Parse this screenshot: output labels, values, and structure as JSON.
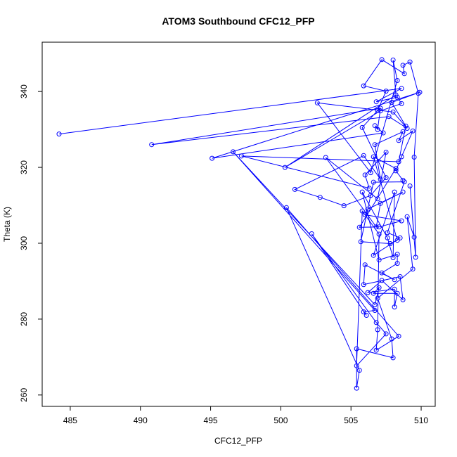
{
  "chart_data": {
    "type": "scatter",
    "mode": "lines+markers",
    "title": "ATOM3 Southbound CFC12_PFP",
    "xlabel": "CFC12_PFP",
    "ylabel": "Theta (K)",
    "xlim": [
      483,
      511
    ],
    "ylim": [
      257,
      353
    ],
    "xticks": [
      485,
      490,
      495,
      500,
      505,
      510
    ],
    "yticks": [
      260,
      280,
      300,
      320,
      340
    ],
    "color": "#0000ff",
    "grid": false,
    "legend": "none",
    "series": [
      {
        "points": [
          [
            484.2,
            328.8
          ],
          [
            508.6,
            340.8
          ],
          [
            506.8,
            337.3
          ],
          [
            508.3,
            338.5
          ],
          [
            508.6,
            336.8
          ],
          [
            507.1,
            334.9
          ],
          [
            500.3,
            320.0
          ],
          [
            508.2,
            339.1
          ],
          [
            508.0,
            348.3
          ],
          [
            508.3,
            342.9
          ],
          [
            506.4,
            318.6
          ],
          [
            502.6,
            337.0
          ],
          [
            508.0,
            334.6
          ],
          [
            509.0,
            330.3
          ],
          [
            507.7,
            333.4
          ],
          [
            490.8,
            326.0
          ],
          [
            507.1,
            335.6
          ],
          [
            506.9,
            330.0
          ],
          [
            506.7,
            331.0
          ],
          [
            507.3,
            329.1
          ],
          [
            495.1,
            322.4
          ],
          [
            509.9,
            339.8
          ],
          [
            507.9,
            337.1
          ],
          [
            508.9,
            330.9
          ],
          [
            508.4,
            321.5
          ],
          [
            497.2,
            323.0
          ],
          [
            506.3,
            314.5
          ],
          [
            506.0,
            318.0
          ],
          [
            507.5,
            324.0
          ],
          [
            506.9,
            311.7
          ],
          [
            503.2,
            322.6
          ],
          [
            506.8,
            304.3
          ],
          [
            507.1,
            310.5
          ],
          [
            508.7,
            313.5
          ],
          [
            506.2,
            309.0
          ],
          [
            506.0,
            307.5
          ],
          [
            508.6,
            305.9
          ],
          [
            507.0,
            304.3
          ],
          [
            505.6,
            304.2
          ],
          [
            508.2,
            319.7
          ],
          [
            506.6,
            322.8
          ],
          [
            508.3,
            300.8
          ],
          [
            507.8,
            299.9
          ],
          [
            505.7,
            300.4
          ],
          [
            506.6,
            316.1
          ],
          [
            508.8,
            316.2
          ],
          [
            507.6,
            302.8
          ],
          [
            508.5,
            301.4
          ],
          [
            506.6,
            296.8
          ],
          [
            508.1,
            313.5
          ],
          [
            508.0,
            296.2
          ],
          [
            507.6,
            301.4
          ],
          [
            505.8,
            313.5
          ],
          [
            507.0,
            295.6
          ],
          [
            508.3,
            297.1
          ],
          [
            508.3,
            294.7
          ],
          [
            507.2,
            292.2
          ],
          [
            508.1,
            290.4
          ],
          [
            506.0,
            294.3
          ],
          [
            505.9,
            289.1
          ],
          [
            508.5,
            291.2
          ],
          [
            508.7,
            285.1
          ],
          [
            507.2,
            290.2
          ],
          [
            506.2,
            287.0
          ],
          [
            508.1,
            287.9
          ],
          [
            508.1,
            283.2
          ],
          [
            508.3,
            286.8
          ],
          [
            506.6,
            286.8
          ],
          [
            507.0,
            288.3
          ],
          [
            506.7,
            283.8
          ],
          [
            496.6,
            324.1
          ],
          [
            506.7,
            282.3
          ],
          [
            505.9,
            281.9
          ],
          [
            506.1,
            281.0
          ],
          [
            502.2,
            302.5
          ],
          [
            506.8,
            279.1
          ],
          [
            507.5,
            276.1
          ],
          [
            505.4,
            267.7
          ],
          [
            505.8,
            308.5
          ],
          [
            507.0,
            302.4
          ],
          [
            506.9,
            277.2
          ],
          [
            506.8,
            271.8
          ],
          [
            508.4,
            275.5
          ],
          [
            500.4,
            309.4
          ],
          [
            505.6,
            266.5
          ],
          [
            505.4,
            261.8
          ],
          [
            505.4,
            272.2
          ],
          [
            508.0,
            269.8
          ],
          [
            507.9,
            274.8
          ],
          [
            506.9,
            285.5
          ],
          [
            509.4,
            293.2
          ],
          [
            509.0,
            307.0
          ],
          [
            509.5,
            301.6
          ],
          [
            509.2,
            315.1
          ],
          [
            509.6,
            296.3
          ],
          [
            509.5,
            322.7
          ],
          [
            509.8,
            339.5
          ],
          [
            509.2,
            347.8
          ],
          [
            508.7,
            346.9
          ],
          [
            508.8,
            344.7
          ],
          [
            507.2,
            348.4
          ],
          [
            505.9,
            341.5
          ],
          [
            507.5,
            340.1
          ],
          [
            506.9,
            335.0
          ],
          [
            505.8,
            330.5
          ],
          [
            507.5,
            317.3
          ],
          [
            506.4,
            312.6
          ],
          [
            504.5,
            309.9
          ],
          [
            502.8,
            312.1
          ],
          [
            501.0,
            314.2
          ],
          [
            505.9,
            323.1
          ],
          [
            507.1,
            316.9
          ],
          [
            506.7,
            326.0
          ],
          [
            508.7,
            329.4
          ],
          [
            508.4,
            327.1
          ],
          [
            509.4,
            329.6
          ],
          [
            508.6,
            322.8
          ],
          [
            508.2,
            319.1
          ],
          [
            508.7,
            316.6
          ]
        ]
      }
    ]
  }
}
